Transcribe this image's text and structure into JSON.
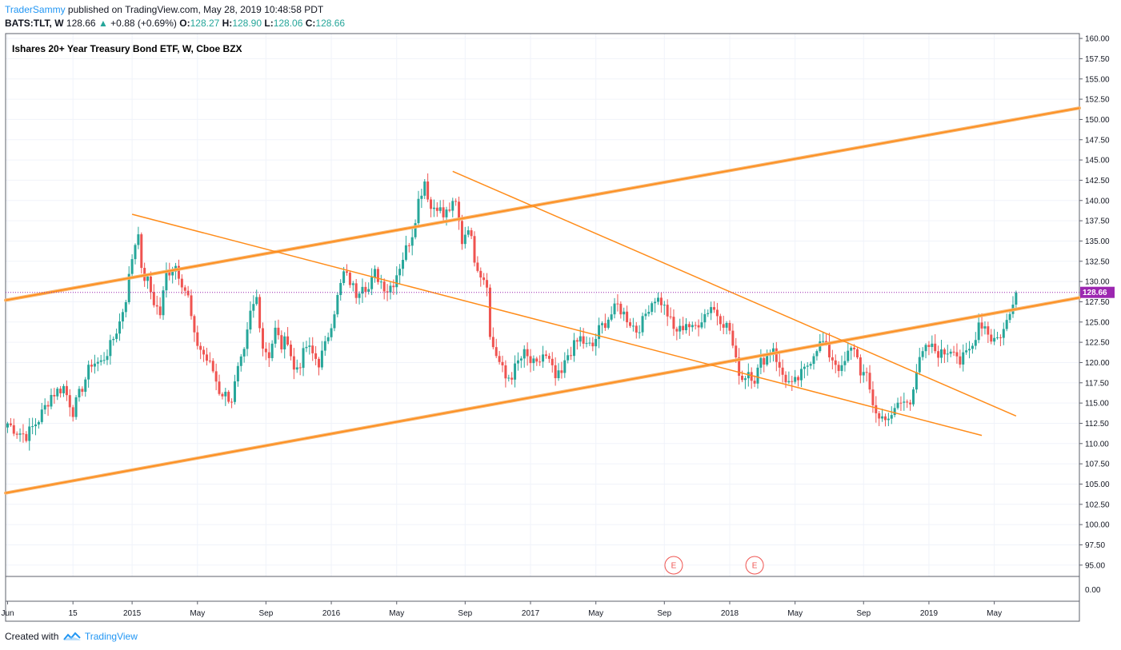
{
  "header": {
    "author": "TraderSammy",
    "published": "published on TradingView.com, May 28, 2019 10:48:58 PDT"
  },
  "quote": {
    "symbol": "BATS:TLT, W",
    "last": "128.66",
    "change": "+0.88 (+0.69%)",
    "o_label": "O:",
    "o": "128.27",
    "h_label": "H:",
    "h": "128.90",
    "l_label": "L:",
    "l": "128.06",
    "c_label": "C:",
    "c": "128.66"
  },
  "chart_data": {
    "type": "candlestick",
    "title": "Ishares 20+ Year Treasury Bond ETF, W, Cboe BZX",
    "ylim": [
      93.6,
      160.6
    ],
    "yticks": [
      "160.00",
      "157.50",
      "155.00",
      "152.50",
      "150.00",
      "147.50",
      "145.00",
      "142.50",
      "140.00",
      "137.50",
      "135.00",
      "132.50",
      "130.00",
      "127.50",
      "125.00",
      "122.50",
      "120.00",
      "117.50",
      "115.00",
      "112.50",
      "110.00",
      "107.50",
      "105.00",
      "102.50",
      "100.00",
      "97.50",
      "95.00"
    ],
    "ytick_values": [
      160,
      157.5,
      155,
      152.5,
      150,
      147.5,
      145,
      142.5,
      140,
      137.5,
      135,
      132.5,
      130,
      127.5,
      125,
      122.5,
      120,
      117.5,
      115,
      112.5,
      110,
      107.5,
      105,
      102.5,
      100,
      97.5,
      95
    ],
    "xticks": [
      {
        "label": "Jun",
        "week": 0
      },
      {
        "label": "15",
        "week": 21
      },
      {
        "label": "2015",
        "week": 40
      },
      {
        "label": "May",
        "week": 61
      },
      {
        "label": "Sep",
        "week": 83
      },
      {
        "label": "2016",
        "week": 104
      },
      {
        "label": "May",
        "week": 125
      },
      {
        "label": "Sep",
        "week": 147
      },
      {
        "label": "2017",
        "week": 168
      },
      {
        "label": "May",
        "week": 189
      },
      {
        "label": "Sep",
        "week": 211
      },
      {
        "label": "2018",
        "week": 232
      },
      {
        "label": "May",
        "week": 253
      },
      {
        "label": "Sep",
        "week": 275
      },
      {
        "label": "2019",
        "week": 296
      },
      {
        "label": "May",
        "week": 317
      }
    ],
    "anchors": [
      [
        0,
        112.5
      ],
      [
        3,
        111.5
      ],
      [
        6,
        111
      ],
      [
        10,
        113
      ],
      [
        14,
        116
      ],
      [
        18,
        117
      ],
      [
        21,
        114
      ],
      [
        24,
        117
      ],
      [
        27,
        120
      ],
      [
        30,
        120
      ],
      [
        33,
        122
      ],
      [
        36,
        125
      ],
      [
        38,
        128
      ],
      [
        40,
        133
      ],
      [
        42,
        136.5
      ],
      [
        43,
        131
      ],
      [
        45,
        130
      ],
      [
        47,
        127.5
      ],
      [
        49,
        126
      ],
      [
        51,
        131
      ],
      [
        54,
        132
      ],
      [
        56,
        130
      ],
      [
        58,
        128
      ],
      [
        60,
        123
      ],
      [
        63,
        121
      ],
      [
        66,
        119
      ],
      [
        68,
        116.5
      ],
      [
        70,
        116
      ],
      [
        72,
        115.5
      ],
      [
        74,
        119
      ],
      [
        76,
        121
      ],
      [
        78,
        126
      ],
      [
        80,
        128
      ],
      [
        82,
        122
      ],
      [
        84,
        121
      ],
      [
        86,
        124
      ],
      [
        88,
        122
      ],
      [
        90,
        123
      ],
      [
        92,
        119
      ],
      [
        94,
        120
      ],
      [
        96,
        122
      ],
      [
        98,
        121
      ],
      [
        100,
        120
      ],
      [
        102,
        122
      ],
      [
        104,
        125
      ],
      [
        106,
        128
      ],
      [
        108,
        131
      ],
      [
        110,
        130
      ],
      [
        112,
        128.5
      ],
      [
        114,
        130
      ],
      [
        116,
        129
      ],
      [
        118,
        131
      ],
      [
        120,
        130
      ],
      [
        122,
        129
      ],
      [
        124,
        130
      ],
      [
        126,
        132
      ],
      [
        128,
        134
      ],
      [
        130,
        136
      ],
      [
        132,
        140
      ],
      [
        134,
        142.5
      ],
      [
        136,
        139
      ],
      [
        138,
        139.5
      ],
      [
        140,
        138
      ],
      [
        142,
        139
      ],
      [
        144,
        139.5
      ],
      [
        146,
        135
      ],
      [
        148,
        137
      ],
      [
        150,
        133
      ],
      [
        152,
        131
      ],
      [
        154,
        130
      ],
      [
        155,
        123
      ],
      [
        156,
        122
      ],
      [
        158,
        120
      ],
      [
        160,
        118
      ],
      [
        162,
        118.5
      ],
      [
        164,
        120
      ],
      [
        166,
        121
      ],
      [
        168,
        120
      ],
      [
        170,
        119.5
      ],
      [
        172,
        121
      ],
      [
        174,
        120
      ],
      [
        176,
        118
      ],
      [
        178,
        118.5
      ],
      [
        180,
        121
      ],
      [
        182,
        122
      ],
      [
        184,
        123
      ],
      [
        186,
        122
      ],
      [
        188,
        122
      ],
      [
        190,
        124
      ],
      [
        192,
        125
      ],
      [
        194,
        126
      ],
      [
        196,
        127
      ],
      [
        198,
        126
      ],
      [
        200,
        125
      ],
      [
        202,
        124
      ],
      [
        204,
        125
      ],
      [
        206,
        127
      ],
      [
        208,
        128
      ],
      [
        210,
        127.5
      ],
      [
        212,
        126
      ],
      [
        214,
        124
      ],
      [
        216,
        124
      ],
      [
        218,
        125
      ],
      [
        220,
        124
      ],
      [
        222,
        125
      ],
      [
        224,
        126
      ],
      [
        226,
        127
      ],
      [
        228,
        126
      ],
      [
        230,
        125
      ],
      [
        232,
        124
      ],
      [
        234,
        120
      ],
      [
        236,
        118
      ],
      [
        238,
        119
      ],
      [
        240,
        118
      ],
      [
        242,
        120
      ],
      [
        244,
        121
      ],
      [
        246,
        122
      ],
      [
        248,
        119
      ],
      [
        250,
        118
      ],
      [
        252,
        117
      ],
      [
        254,
        118
      ],
      [
        256,
        119
      ],
      [
        258,
        120.5
      ],
      [
        260,
        122
      ],
      [
        262,
        122.5
      ],
      [
        264,
        121
      ],
      [
        266,
        120
      ],
      [
        268,
        119
      ],
      [
        270,
        121
      ],
      [
        272,
        122
      ],
      [
        274,
        119
      ],
      [
        276,
        118
      ],
      [
        278,
        115
      ],
      [
        280,
        113
      ],
      [
        282,
        113.5
      ],
      [
        284,
        113
      ],
      [
        286,
        115
      ],
      [
        288,
        115
      ],
      [
        290,
        115.5
      ],
      [
        292,
        119
      ],
      [
        294,
        121
      ],
      [
        296,
        122
      ],
      [
        298,
        121.5
      ],
      [
        300,
        121
      ],
      [
        302,
        121.5
      ],
      [
        304,
        122
      ],
      [
        306,
        120
      ],
      [
        308,
        121
      ],
      [
        310,
        122
      ],
      [
        312,
        125
      ],
      [
        314,
        124.5
      ],
      [
        316,
        123
      ],
      [
        318,
        123
      ],
      [
        320,
        124
      ],
      [
        322,
        126
      ],
      [
        323,
        127.8
      ],
      [
        324,
        128.66
      ]
    ],
    "trendlines": [
      {
        "from": [
          -2,
          127.5
        ],
        "to": [
          350,
          128.5
        ],
        "kind": "channel-mid",
        "p1": [
          -2,
          127.5
        ],
        "p2": [
          350,
          128.5
        ]
      }
    ],
    "lines_price": [
      {
        "w1": -2,
        "p1": 127.6,
        "w2": 350,
        "p2": 151.8,
        "double": true
      },
      {
        "w1": -2,
        "p1": 103.8,
        "w2": 350,
        "p2": 128.4,
        "double": true
      },
      {
        "w1": 40,
        "p1": 138.3,
        "w2": 313,
        "p2": 111.0,
        "double": false
      },
      {
        "w1": 143,
        "p1": 143.6,
        "w2": 324,
        "p2": 113.4,
        "double": false
      }
    ],
    "last_price": 128.66,
    "last_label": "128.66",
    "volume_axis_label": "0.00",
    "events": [
      {
        "week": 214,
        "label": "E"
      },
      {
        "week": 240,
        "label": "E"
      }
    ]
  },
  "footer": {
    "created": "Created with",
    "brand": "TradingView"
  }
}
